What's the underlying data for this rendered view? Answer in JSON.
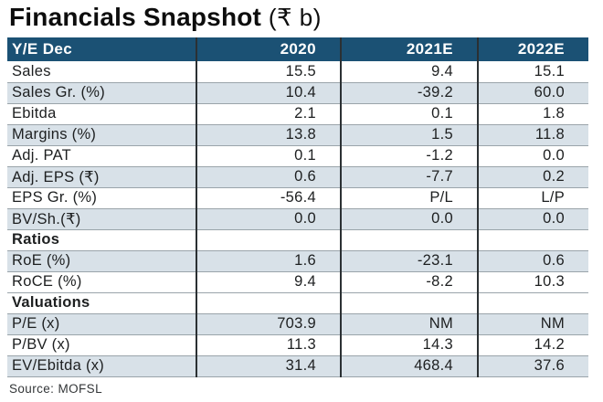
{
  "title": {
    "text": "Financials Snapshot",
    "unit": "(₹ b)"
  },
  "colors": {
    "header_bg": "#1b5174",
    "header_text": "#ffffff",
    "row_shaded_bg": "#d8e1e8",
    "text": "#1d1f20",
    "grid_line": "#9aa4aa",
    "column_divider": "#2b3033"
  },
  "table": {
    "columns": [
      "Y/E Dec",
      "2020",
      "2021E",
      "2022E"
    ],
    "rows": [
      {
        "label": "Sales",
        "values": [
          "15.5",
          "9.4",
          "15.1"
        ],
        "section": false,
        "shaded": false
      },
      {
        "label": "Sales Gr. (%)",
        "values": [
          "10.4",
          "-39.2",
          "60.0"
        ],
        "section": false,
        "shaded": true
      },
      {
        "label": "Ebitda",
        "values": [
          "2.1",
          "0.1",
          "1.8"
        ],
        "section": false,
        "shaded": false
      },
      {
        "label": "Margins (%)",
        "values": [
          "13.8",
          "1.5",
          "11.8"
        ],
        "section": false,
        "shaded": true
      },
      {
        "label": "Adj. PAT",
        "values": [
          "0.1",
          "-1.2",
          "0.0"
        ],
        "section": false,
        "shaded": false
      },
      {
        "label": "Adj. EPS (₹)",
        "values": [
          "0.6",
          "-7.7",
          "0.2"
        ],
        "section": false,
        "shaded": true
      },
      {
        "label": "EPS Gr. (%)",
        "values": [
          "-56.4",
          "P/L",
          "L/P"
        ],
        "section": false,
        "shaded": false
      },
      {
        "label": "BV/Sh.(₹)",
        "values": [
          "0.0",
          "0.0",
          "0.0"
        ],
        "section": false,
        "shaded": true
      },
      {
        "label": "Ratios",
        "values": [
          "",
          "",
          ""
        ],
        "section": true,
        "shaded": false
      },
      {
        "label": "RoE (%)",
        "values": [
          "1.6",
          "-23.1",
          "0.6"
        ],
        "section": false,
        "shaded": true
      },
      {
        "label": "RoCE (%)",
        "values": [
          "9.4",
          "-8.2",
          "10.3"
        ],
        "section": false,
        "shaded": false
      },
      {
        "label": "Valuations",
        "values": [
          "",
          "",
          ""
        ],
        "section": true,
        "shaded": false
      },
      {
        "label": "P/E (x)",
        "values": [
          "703.9",
          "NM",
          "NM"
        ],
        "section": false,
        "shaded": true
      },
      {
        "label": "P/BV (x)",
        "values": [
          "11.3",
          "14.3",
          "14.2"
        ],
        "section": false,
        "shaded": false
      },
      {
        "label": "EV/Ebitda (x)",
        "values": [
          "31.4",
          "468.4",
          "37.6"
        ],
        "section": false,
        "shaded": true
      }
    ]
  },
  "footer": {
    "source": "Source: MOFSL"
  }
}
